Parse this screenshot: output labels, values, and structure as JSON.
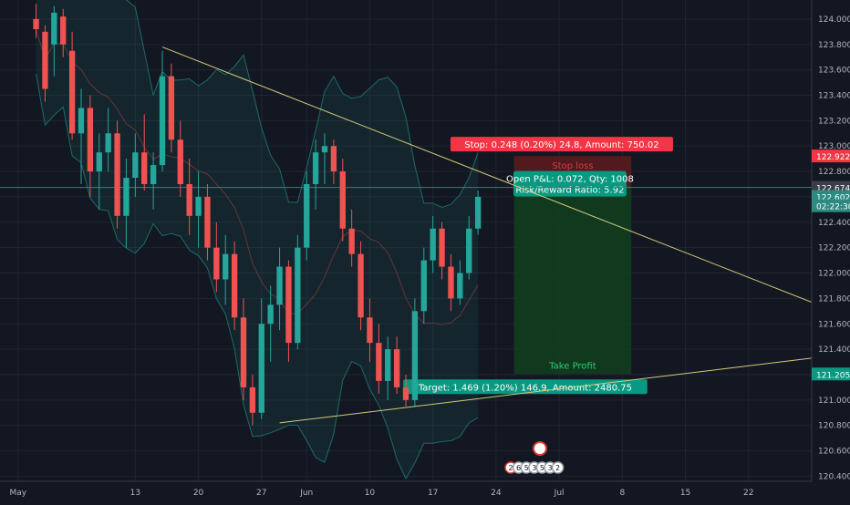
{
  "colors": {
    "background": "#131722",
    "grid": "#1f2433",
    "up": "#26a69a",
    "down": "#ef5350",
    "axis_text": "#b2b5be",
    "trendline": "#d4c97a",
    "bollinger": "#1d6b68",
    "stop_box": "#5e1a1d",
    "target_box": "#123f1d",
    "stop_label": "#f23645",
    "target_label": "#089981",
    "pnl_label": "#089981"
  },
  "chart_data": {
    "type": "candlestick",
    "symbol_price_axis": {
      "ticks": [
        120.4,
        120.6,
        120.8,
        121.0,
        121.2,
        121.4,
        121.6,
        121.8,
        122.0,
        122.2,
        122.4,
        122.6,
        122.8,
        123.0,
        123.2,
        123.4,
        123.6,
        123.8,
        124.0
      ],
      "tick_labels": [
        "120.400",
        "120.600",
        "120.800",
        "121.000",
        "121.200",
        "121.400",
        "121.600",
        "121.800",
        "122.000",
        "122.200",
        "122.400",
        "122.600",
        "122.800",
        "123.000",
        "123.200",
        "123.400",
        "123.600",
        "123.800",
        "124.000"
      ],
      "ylim": [
        120.36,
        124.15
      ]
    },
    "time_axis": {
      "tick_labels": [
        "May",
        "13",
        "20",
        "27",
        "Jun",
        "10",
        "17",
        "24",
        "Jul",
        "8",
        "15",
        "22"
      ],
      "tick_bars": [
        -2,
        11,
        18,
        25,
        30,
        37,
        44,
        51,
        58,
        65,
        72,
        79
      ],
      "xlim_bars": [
        -4,
        86
      ]
    },
    "price_markers": [
      {
        "label": "122.922",
        "value": 122.922,
        "kind": "stop"
      },
      {
        "label": "122.674",
        "value": 122.674,
        "kind": "entry"
      },
      {
        "label": "122.602",
        "value": 122.602,
        "kind": "last"
      },
      {
        "label": "02:22:30",
        "value": 122.53,
        "kind": "countdown"
      },
      {
        "label": "121.205",
        "value": 121.205,
        "kind": "target"
      }
    ],
    "position": {
      "entry": 122.674,
      "stop": 122.922,
      "target": 121.205,
      "start_bar": 53,
      "end_bar": 66,
      "stop_text": "Stop loss",
      "target_text": "Take Profit",
      "stop_label": "Stop: 0.248 (0.20%) 24.8, Amount: 750.02",
      "target_label": "Target: 1.469 (1.20%) 146.9, Amount: 2480.75",
      "pnl_label_1": "Open P&L: 0.072, Qty: 1008",
      "pnl_label_2": "Risk/Reward Ratio: 5.92"
    },
    "trendlines": [
      {
        "from": [
          14,
          123.78
        ],
        "to": [
          86,
          121.77
        ]
      },
      {
        "from": [
          27,
          120.82
        ],
        "to": [
          86,
          121.33
        ]
      }
    ],
    "events_strip": [
      "2",
      "6",
      "5",
      "3",
      "5",
      "3",
      "2"
    ],
    "candles": [
      [
        124.0,
        124.12,
        123.85,
        123.92
      ],
      [
        123.9,
        123.95,
        123.35,
        123.45
      ],
      [
        123.8,
        124.1,
        123.55,
        124.05
      ],
      [
        124.02,
        124.08,
        123.7,
        123.8
      ],
      [
        123.75,
        123.9,
        123.05,
        123.1
      ],
      [
        123.1,
        123.45,
        122.7,
        123.3
      ],
      [
        123.3,
        123.4,
        122.6,
        122.8
      ],
      [
        122.8,
        123.1,
        122.5,
        122.95
      ],
      [
        122.95,
        123.3,
        122.8,
        123.1
      ],
      [
        123.1,
        123.2,
        122.35,
        122.45
      ],
      [
        122.45,
        122.9,
        122.2,
        122.75
      ],
      [
        122.75,
        123.1,
        122.6,
        122.95
      ],
      [
        122.95,
        123.25,
        122.65,
        122.7
      ],
      [
        122.7,
        122.95,
        122.5,
        122.85
      ],
      [
        122.85,
        123.75,
        122.8,
        123.55
      ],
      [
        123.55,
        123.65,
        122.95,
        123.05
      ],
      [
        123.05,
        123.2,
        122.6,
        122.7
      ],
      [
        122.7,
        122.9,
        122.3,
        122.45
      ],
      [
        122.45,
        122.8,
        122.2,
        122.6
      ],
      [
        122.6,
        122.7,
        122.1,
        122.2
      ],
      [
        122.2,
        122.4,
        121.85,
        121.95
      ],
      [
        121.95,
        122.3,
        121.75,
        122.15
      ],
      [
        122.15,
        122.25,
        121.55,
        121.65
      ],
      [
        121.65,
        121.8,
        121.0,
        121.1
      ],
      [
        121.1,
        121.2,
        120.8,
        120.9
      ],
      [
        120.9,
        121.8,
        120.85,
        121.6
      ],
      [
        121.6,
        121.9,
        121.3,
        121.75
      ],
      [
        121.75,
        122.2,
        121.55,
        122.05
      ],
      [
        122.05,
        122.1,
        121.3,
        121.45
      ],
      [
        121.45,
        122.3,
        121.4,
        122.2
      ],
      [
        122.2,
        122.8,
        122.1,
        122.7
      ],
      [
        122.7,
        123.05,
        122.5,
        122.95
      ],
      [
        122.95,
        123.1,
        122.7,
        123.0
      ],
      [
        123.0,
        123.05,
        122.7,
        122.8
      ],
      [
        122.8,
        122.9,
        122.25,
        122.35
      ],
      [
        122.35,
        122.5,
        122.05,
        122.15
      ],
      [
        122.15,
        122.25,
        121.55,
        121.65
      ],
      [
        121.65,
        121.8,
        121.3,
        121.45
      ],
      [
        121.45,
        121.6,
        121.05,
        121.15
      ],
      [
        121.15,
        121.5,
        121.0,
        121.4
      ],
      [
        121.4,
        121.5,
        121.05,
        121.1
      ],
      [
        121.1,
        121.2,
        120.95,
        121.0
      ],
      [
        121.0,
        121.8,
        120.95,
        121.7
      ],
      [
        121.7,
        122.2,
        121.6,
        122.1
      ],
      [
        122.1,
        122.45,
        122.0,
        122.35
      ],
      [
        122.35,
        122.4,
        121.95,
        122.05
      ],
      [
        122.05,
        122.15,
        121.7,
        121.8
      ],
      [
        121.8,
        122.1,
        121.75,
        122.0
      ],
      [
        122.0,
        122.45,
        121.95,
        122.35
      ],
      [
        122.35,
        122.65,
        122.3,
        122.6
      ]
    ]
  }
}
